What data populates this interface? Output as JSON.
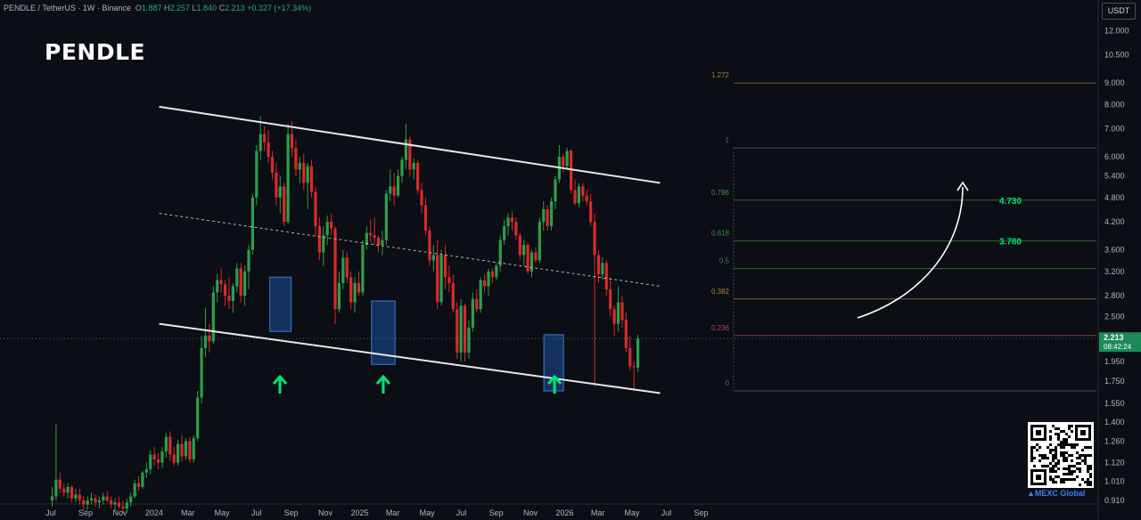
{
  "header": {
    "symbol": "PENDLE / TetherUS · 1W · Binance",
    "open_label": "O",
    "open": "1.887",
    "high_label": "H",
    "high": "2.257",
    "low_label": "L",
    "low": "1.840",
    "close_label": "C",
    "close": "2.213",
    "change": "+0.327 (+17.34%)"
  },
  "title": "PENDLE",
  "currency": "USDT",
  "brand": "MEXC Global",
  "colors": {
    "background": "#0b0e14",
    "up": "#26a69a",
    "down": "#ef5350",
    "accent_green": "#00e676",
    "box": "#1e4f9a"
  },
  "chart_data": {
    "type": "candlestick",
    "scale": "log",
    "ylim": [
      0.91,
      12.5
    ],
    "y_ticks": [
      "12.000",
      "10.500",
      "9.000",
      "8.000",
      "7.000",
      "6.000",
      "5.400",
      "4.800",
      "4.200",
      "3.600",
      "3.200",
      "2.800",
      "2.500",
      "2.213",
      "1.950",
      "1.750",
      "1.550",
      "1.400",
      "1.260",
      "1.120",
      "1.010",
      "0.910"
    ],
    "x_ticks": [
      "Jul",
      "Sep",
      "Nov",
      "2024",
      "Mar",
      "May",
      "Jul",
      "Sep",
      "Nov",
      "2025",
      "Mar",
      "May",
      "Jul",
      "Sep",
      "Nov",
      "2026",
      "Mar",
      "May",
      "Jul",
      "Sep"
    ],
    "last_price": "2.213",
    "countdown": "08:42:24",
    "fib_levels": [
      {
        "label": "1.272",
        "value": 9.0
      },
      {
        "label": "1",
        "value": 6.3
      },
      {
        "label": "0.786",
        "value": 4.73
      },
      {
        "label": "0.618",
        "value": 3.78
      },
      {
        "label": "0.5",
        "value": 3.25
      },
      {
        "label": "0.382",
        "value": 2.75
      },
      {
        "label": "0.236",
        "value": 2.25
      },
      {
        "label": "0",
        "value": 1.66
      }
    ],
    "targets": [
      {
        "label": "4.730",
        "value": 4.73
      },
      {
        "label": "3.780",
        "value": 3.78
      }
    ],
    "channel": {
      "upper": [
        {
          "date": "2024-01-10",
          "value": 7.9
        },
        {
          "date": "2026-06-20",
          "value": 5.2
        }
      ],
      "lower": [
        {
          "date": "2024-01-10",
          "value": 2.4
        },
        {
          "date": "2026-06-20",
          "value": 1.64
        }
      ],
      "mid": [
        {
          "date": "2024-01-10",
          "value": 4.4
        },
        {
          "date": "2026-06-20",
          "value": 2.95
        }
      ]
    },
    "support_boxes": [
      {
        "from": "2024-07-25",
        "to": "2024-09-01",
        "low": 2.3,
        "high": 3.1
      },
      {
        "from": "2025-01-22",
        "to": "2025-03-05",
        "low": 1.92,
        "high": 2.72
      },
      {
        "from": "2025-11-25",
        "to": "2025-12-30",
        "low": 1.66,
        "high": 2.26
      }
    ],
    "arrows": [
      "2024-08-12",
      "2025-02-12",
      "2025-12-14"
    ],
    "candles": [
      [
        0.91,
        0.98,
        0.88,
        0.93
      ],
      [
        0.93,
        1.38,
        0.91,
        1.02
      ],
      [
        1.02,
        1.06,
        0.95,
        0.97
      ],
      [
        0.97,
        1.0,
        0.93,
        0.95
      ],
      [
        0.95,
        1.0,
        0.92,
        0.98
      ],
      [
        0.98,
        0.99,
        0.9,
        0.92
      ],
      [
        0.92,
        0.97,
        0.9,
        0.94
      ],
      [
        0.94,
        0.97,
        0.89,
        0.91
      ],
      [
        0.91,
        0.93,
        0.86,
        0.89
      ],
      [
        0.89,
        0.93,
        0.86,
        0.91
      ],
      [
        0.91,
        0.95,
        0.89,
        0.92
      ],
      [
        0.92,
        0.94,
        0.88,
        0.9
      ],
      [
        0.9,
        0.93,
        0.87,
        0.91
      ],
      [
        0.91,
        0.95,
        0.89,
        0.93
      ],
      [
        0.93,
        0.96,
        0.9,
        0.91
      ],
      [
        0.91,
        0.93,
        0.87,
        0.89
      ],
      [
        0.89,
        0.92,
        0.86,
        0.9
      ],
      [
        0.9,
        0.93,
        0.87,
        0.88
      ],
      [
        0.88,
        0.91,
        0.85,
        0.87
      ],
      [
        0.87,
        0.92,
        0.85,
        0.9
      ],
      [
        0.9,
        0.95,
        0.88,
        0.93
      ],
      [
        0.93,
        1.02,
        0.92,
        1.0
      ],
      [
        1.0,
        1.04,
        0.96,
        0.98
      ],
      [
        0.98,
        1.07,
        0.97,
        1.06
      ],
      [
        1.06,
        1.12,
        1.03,
        1.08
      ],
      [
        1.08,
        1.2,
        1.05,
        1.17
      ],
      [
        1.17,
        1.22,
        1.1,
        1.14
      ],
      [
        1.14,
        1.18,
        1.08,
        1.12
      ],
      [
        1.12,
        1.22,
        1.09,
        1.19
      ],
      [
        1.19,
        1.32,
        1.15,
        1.29
      ],
      [
        1.29,
        1.33,
        1.13,
        1.17
      ],
      [
        1.17,
        1.22,
        1.1,
        1.12
      ],
      [
        1.12,
        1.27,
        1.1,
        1.24
      ],
      [
        1.24,
        1.3,
        1.13,
        1.16
      ],
      [
        1.16,
        1.28,
        1.14,
        1.26
      ],
      [
        1.26,
        1.29,
        1.12,
        1.14
      ],
      [
        1.14,
        1.3,
        1.12,
        1.28
      ],
      [
        1.28,
        1.66,
        1.26,
        1.6
      ],
      [
        1.6,
        2.25,
        1.55,
        2.1
      ],
      [
        2.1,
        2.62,
        2.0,
        2.25
      ],
      [
        2.25,
        2.4,
        2.05,
        2.18
      ],
      [
        2.18,
        2.95,
        2.15,
        2.85
      ],
      [
        2.85,
        3.15,
        2.7,
        3.05
      ],
      [
        3.05,
        3.25,
        2.85,
        2.98
      ],
      [
        2.98,
        3.05,
        2.65,
        2.8
      ],
      [
        2.8,
        3.1,
        2.6,
        2.72
      ],
      [
        2.72,
        3.0,
        2.55,
        2.95
      ],
      [
        2.95,
        3.35,
        2.85,
        3.25
      ],
      [
        3.25,
        3.35,
        2.7,
        2.8
      ],
      [
        2.8,
        3.3,
        2.65,
        3.2
      ],
      [
        3.2,
        3.7,
        2.9,
        3.6
      ],
      [
        3.6,
        4.9,
        3.5,
        4.8
      ],
      [
        4.8,
        6.4,
        4.6,
        6.2
      ],
      [
        6.2,
        7.5,
        5.9,
        6.8
      ],
      [
        6.8,
        7.1,
        6.2,
        6.5
      ],
      [
        6.5,
        6.95,
        5.8,
        6.0
      ],
      [
        6.0,
        6.2,
        5.3,
        5.5
      ],
      [
        5.5,
        5.8,
        4.6,
        4.8
      ],
      [
        4.8,
        5.4,
        4.4,
        5.1
      ],
      [
        5.1,
        5.2,
        4.1,
        4.2
      ],
      [
        4.2,
        7.2,
        4.15,
        6.8
      ],
      [
        6.8,
        7.3,
        6.0,
        6.3
      ],
      [
        6.3,
        6.6,
        5.4,
        5.6
      ],
      [
        5.6,
        6.0,
        5.2,
        5.8
      ],
      [
        5.8,
        6.1,
        5.0,
        5.2
      ],
      [
        5.2,
        5.8,
        4.5,
        5.7
      ],
      [
        5.7,
        5.9,
        4.8,
        4.95
      ],
      [
        4.95,
        5.1,
        3.9,
        4.1
      ],
      [
        4.1,
        4.3,
        3.4,
        3.55
      ],
      [
        3.55,
        4.1,
        3.3,
        3.9
      ],
      [
        3.9,
        4.35,
        3.7,
        4.2
      ],
      [
        4.2,
        4.4,
        3.9,
        4.05
      ],
      [
        4.05,
        4.1,
        2.4,
        2.6
      ],
      [
        2.6,
        3.2,
        2.55,
        3.0
      ],
      [
        3.0,
        3.6,
        2.9,
        3.45
      ],
      [
        3.45,
        3.55,
        3.0,
        3.1
      ],
      [
        3.1,
        3.2,
        2.6,
        2.7
      ],
      [
        2.7,
        3.1,
        2.55,
        3.0
      ],
      [
        3.0,
        3.2,
        2.8,
        2.85
      ],
      [
        2.85,
        3.8,
        2.8,
        3.7
      ],
      [
        3.7,
        4.1,
        3.6,
        3.95
      ],
      [
        3.95,
        4.25,
        3.75,
        3.9
      ],
      [
        3.9,
        4.3,
        3.7,
        3.85
      ],
      [
        3.85,
        3.9,
        3.55,
        3.7
      ],
      [
        3.7,
        4.0,
        3.5,
        3.8
      ],
      [
        3.8,
        5.0,
        3.7,
        4.9
      ],
      [
        4.9,
        5.6,
        4.7,
        5.1
      ],
      [
        5.1,
        5.5,
        4.6,
        4.85
      ],
      [
        4.85,
        5.6,
        4.8,
        5.4
      ],
      [
        5.4,
        6.0,
        5.2,
        5.9
      ],
      [
        5.9,
        7.2,
        5.6,
        6.6
      ],
      [
        6.6,
        6.7,
        5.4,
        5.6
      ],
      [
        5.6,
        5.95,
        5.3,
        5.8
      ],
      [
        5.8,
        5.9,
        4.9,
        5.0
      ],
      [
        5.0,
        5.2,
        4.4,
        4.6
      ],
      [
        4.6,
        4.8,
        3.9,
        4.0
      ],
      [
        4.0,
        4.1,
        3.3,
        3.4
      ],
      [
        3.4,
        3.7,
        3.2,
        3.5
      ],
      [
        3.5,
        3.8,
        2.6,
        2.7
      ],
      [
        2.7,
        3.6,
        2.65,
        3.5
      ],
      [
        3.5,
        3.7,
        2.9,
        3.1
      ],
      [
        3.1,
        3.3,
        2.85,
        3.0
      ],
      [
        3.0,
        3.15,
        2.55,
        2.6
      ],
      [
        2.6,
        2.7,
        1.98,
        2.05
      ],
      [
        2.05,
        2.75,
        1.95,
        2.65
      ],
      [
        2.65,
        2.68,
        1.95,
        2.05
      ],
      [
        2.05,
        2.45,
        1.98,
        2.35
      ],
      [
        2.35,
        2.85,
        2.3,
        2.75
      ],
      [
        2.75,
        2.9,
        2.55,
        2.6
      ],
      [
        2.6,
        3.1,
        2.55,
        3.05
      ],
      [
        3.05,
        3.15,
        2.85,
        2.95
      ],
      [
        2.95,
        3.25,
        2.8,
        3.2
      ],
      [
        3.2,
        3.25,
        3.0,
        3.1
      ],
      [
        3.1,
        3.35,
        3.05,
        3.3
      ],
      [
        3.3,
        3.9,
        3.2,
        3.8
      ],
      [
        3.8,
        4.25,
        3.7,
        4.1
      ],
      [
        4.1,
        4.4,
        3.9,
        4.3
      ],
      [
        4.3,
        4.45,
        4.0,
        4.2
      ],
      [
        4.2,
        4.3,
        3.8,
        3.9
      ],
      [
        3.9,
        3.95,
        3.4,
        3.5
      ],
      [
        3.5,
        3.8,
        3.3,
        3.7
      ],
      [
        3.7,
        3.75,
        3.15,
        3.2
      ],
      [
        3.2,
        3.6,
        3.1,
        3.55
      ],
      [
        3.55,
        3.65,
        3.35,
        3.4
      ],
      [
        3.4,
        4.3,
        3.35,
        4.2
      ],
      [
        4.2,
        4.7,
        4.0,
        4.5
      ],
      [
        4.5,
        4.6,
        4.0,
        4.1
      ],
      [
        4.1,
        4.8,
        4.0,
        4.7
      ],
      [
        4.7,
        5.4,
        4.5,
        5.3
      ],
      [
        5.3,
        6.4,
        5.2,
        6.0
      ],
      [
        6.0,
        6.1,
        5.5,
        5.7
      ],
      [
        5.7,
        6.3,
        5.6,
        6.2
      ],
      [
        6.2,
        6.25,
        4.9,
        5.0
      ],
      [
        5.0,
        5.3,
        4.6,
        4.65
      ],
      [
        4.65,
        5.2,
        4.55,
        5.1
      ],
      [
        5.1,
        5.2,
        4.7,
        4.85
      ],
      [
        4.85,
        5.0,
        4.6,
        4.7
      ],
      [
        4.7,
        4.9,
        4.1,
        4.2
      ],
      [
        4.2,
        4.4,
        1.7,
        3.5
      ],
      [
        3.5,
        3.6,
        3.0,
        3.15
      ],
      [
        3.15,
        3.45,
        3.05,
        3.35
      ],
      [
        3.35,
        3.4,
        2.8,
        2.9
      ],
      [
        2.9,
        3.1,
        2.5,
        2.6
      ],
      [
        2.6,
        2.65,
        2.25,
        2.4
      ],
      [
        2.4,
        2.95,
        2.3,
        2.7
      ],
      [
        2.7,
        2.8,
        2.35,
        2.45
      ],
      [
        2.45,
        2.55,
        2.05,
        2.1
      ],
      [
        2.1,
        2.25,
        1.85,
        1.9
      ],
      [
        1.9,
        1.95,
        1.66,
        1.89
      ],
      [
        1.887,
        2.257,
        1.84,
        2.213
      ]
    ]
  }
}
